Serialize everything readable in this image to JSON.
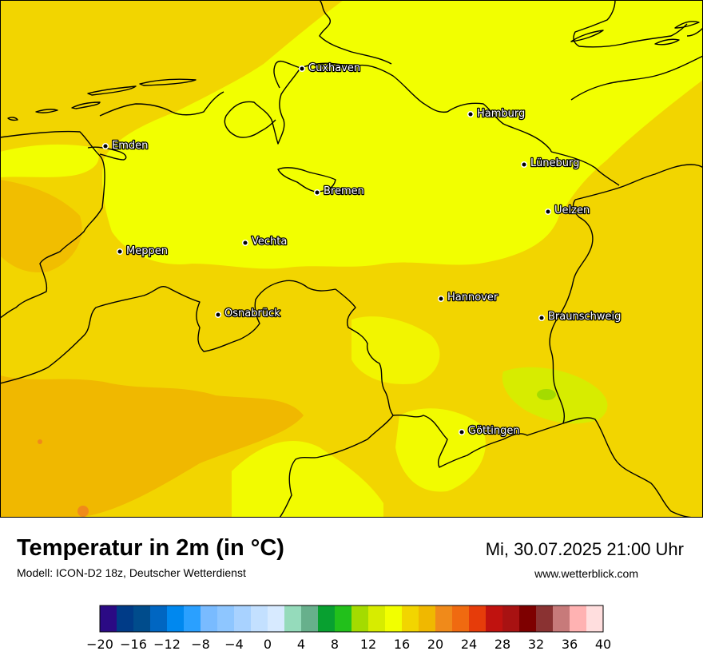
{
  "map": {
    "cities": [
      {
        "id": "cuxhaven",
        "name": "Cuxhaven"
      },
      {
        "id": "hamburg",
        "name": "Hamburg"
      },
      {
        "id": "emden",
        "name": "Emden"
      },
      {
        "id": "lueneburg",
        "name": "Lüneburg"
      },
      {
        "id": "bremen",
        "name": "Bremen"
      },
      {
        "id": "uelzen",
        "name": "Uelzen"
      },
      {
        "id": "vechta",
        "name": "Vechta"
      },
      {
        "id": "meppen",
        "name": "Meppen"
      },
      {
        "id": "hannover",
        "name": "Hannover"
      },
      {
        "id": "osnabrueck",
        "name": "Osnabrück"
      },
      {
        "id": "braunschweig",
        "name": "Braunschweig"
      },
      {
        "id": "goettingen",
        "name": "Göttingen"
      }
    ],
    "colors": {
      "sea": "#f2ff00",
      "warm_land": "#f2d500",
      "hot_land": "#f0b800",
      "cool_land": "#d7ec00",
      "mild_green": "#a4db00",
      "hot_spot": "#f08a1a"
    }
  },
  "footer": {
    "title": "Temperatur in 2m (in °C)",
    "subtitle": "Modell: ICON-D2 18z, Deutscher Wetterdienst",
    "datetime": "Mi, 30.07.2025 21:00 Uhr",
    "website": "www.wetterblick.com"
  },
  "colorbar": {
    "min": -20,
    "max": 40,
    "step": 2,
    "tick_labels": [
      "−20",
      "−16",
      "−12",
      "−8",
      "−4",
      "0",
      "4",
      "8",
      "12",
      "16",
      "20",
      "24",
      "28",
      "32",
      "36",
      "40"
    ],
    "colors": [
      "#2b0a84",
      "#003b87",
      "#004c8c",
      "#0066c2",
      "#0088ef",
      "#2aa0ff",
      "#79bbff",
      "#8ec6ff",
      "#a8d2ff",
      "#c3e0ff",
      "#d7eaff",
      "#95dbbb",
      "#67b08c",
      "#08a030",
      "#22c01b",
      "#a4db00",
      "#d7ec00",
      "#f2ff00",
      "#f2d500",
      "#f0b800",
      "#f08a1a",
      "#f06a10",
      "#e63c0a",
      "#c0120f",
      "#a81212",
      "#7e0000",
      "#8a3232",
      "#c77a7a",
      "#ffb2b2",
      "#ffdede"
    ]
  }
}
